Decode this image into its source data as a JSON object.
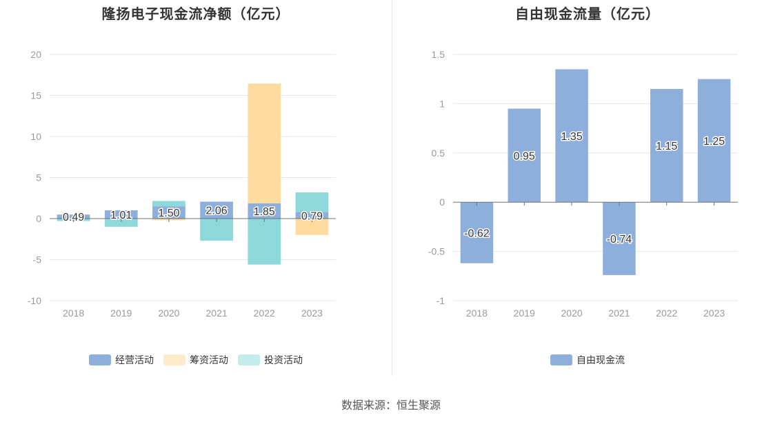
{
  "chart_data": [
    {
      "type": "bar",
      "stacked": true,
      "title": "隆扬电子现金流净额（亿元）",
      "categories": [
        "2018",
        "2019",
        "2020",
        "2021",
        "2022",
        "2023"
      ],
      "ylim": [
        -10,
        20
      ],
      "yticks": [
        20,
        15,
        10,
        5,
        0,
        -5,
        -10
      ],
      "grid": true,
      "legend_position": "bottom",
      "series": [
        {
          "name": "经营活动",
          "color": "#8eaedb",
          "values": [
            0.49,
            1.01,
            1.5,
            2.06,
            1.85,
            0.79
          ],
          "labels": [
            "0.49",
            "1.01",
            "1.50",
            "2.06",
            "1.85",
            "0.79"
          ]
        },
        {
          "name": "筹资活动",
          "color": "#ffdba0",
          "values": [
            0.0,
            0.0,
            -0.2,
            0.0,
            14.6,
            -2.0
          ]
        },
        {
          "name": "投资活动",
          "color": "#8dd8da",
          "values": [
            -0.3,
            -1.0,
            0.65,
            -2.7,
            -5.6,
            2.4
          ]
        }
      ]
    },
    {
      "type": "bar",
      "title": "自由现金流量（亿元）",
      "categories": [
        "2018",
        "2019",
        "2020",
        "2021",
        "2022",
        "2023"
      ],
      "ylim": [
        -1,
        1.5
      ],
      "yticks": [
        1.5,
        1,
        0.5,
        0,
        -0.5,
        -1
      ],
      "ytick_labels": [
        "1.5",
        "1",
        "0.5",
        "0",
        "-0.5",
        "-1"
      ],
      "grid": true,
      "legend_position": "bottom",
      "series": [
        {
          "name": "自由现金流",
          "color": "#8eaedb",
          "values": [
            -0.62,
            0.95,
            1.35,
            -0.74,
            1.15,
            1.25
          ],
          "labels": [
            "-0.62",
            "0.95",
            "1.35",
            "-0.74",
            "1.15",
            "1.25"
          ]
        }
      ]
    }
  ],
  "footer": {
    "source": "数据来源：恒生聚源"
  }
}
